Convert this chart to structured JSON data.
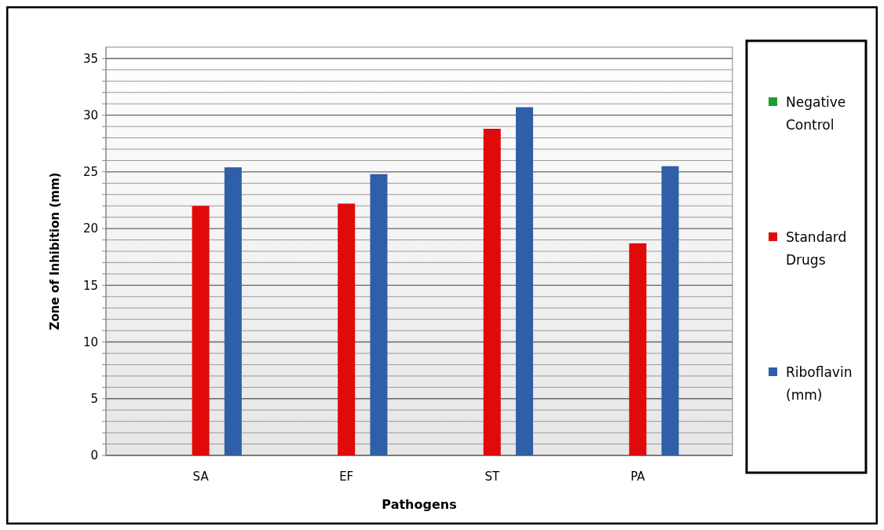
{
  "chart_data": {
    "type": "bar",
    "xlabel": "Pathogens",
    "ylabel": "Zone of Inhibition (mm)",
    "categories": [
      "SA",
      "EF",
      "ST",
      "PA"
    ],
    "series": [
      {
        "name": "Negative Control",
        "color": "#1e9e2e",
        "values": [
          0,
          0,
          0,
          0
        ]
      },
      {
        "name": "Standard Drugs",
        "color": "#e00a0a",
        "values": [
          22,
          22.2,
          28.8,
          18.7
        ]
      },
      {
        "name": "Riboflavin (mm)",
        "color": "#2f5fa8",
        "values": [
          25.4,
          24.8,
          30.7,
          25.5
        ]
      }
    ],
    "ylim": [
      0,
      36
    ],
    "yticks": [
      0,
      {
        "value": 1,
        "label": null
      },
      {
        "value": 2,
        "label": null
      },
      {
        "value": 3,
        "label": null
      },
      {
        "value": 4,
        "label": null
      },
      5,
      {
        "value": 6,
        "label": null
      },
      {
        "value": 7,
        "label": null
      },
      {
        "value": 8,
        "label": null
      },
      {
        "value": 9,
        "label": null
      },
      10,
      {
        "value": 11,
        "label": null
      },
      {
        "value": 12,
        "label": null
      },
      {
        "value": 13,
        "label": null
      },
      {
        "value": 14,
        "label": null
      },
      15,
      {
        "value": 16,
        "label": null
      },
      {
        "value": 17,
        "label": null
      },
      {
        "value": 18,
        "label": null
      },
      {
        "value": 19,
        "label": null
      },
      20,
      {
        "value": 21,
        "label": null
      },
      {
        "value": 22,
        "label": null
      },
      {
        "value": 23,
        "label": null
      },
      {
        "value": 24,
        "label": null
      },
      25,
      {
        "value": 26,
        "label": null
      },
      {
        "value": 27,
        "label": null
      },
      {
        "value": 28,
        "label": null
      },
      {
        "value": 29,
        "label": null
      },
      30,
      {
        "value": 31,
        "label": null
      },
      {
        "value": 32,
        "label": null
      },
      {
        "value": 33,
        "label": null
      },
      {
        "value": 34,
        "label": null
      },
      35
    ],
    "grid": "y",
    "legend": "right"
  }
}
